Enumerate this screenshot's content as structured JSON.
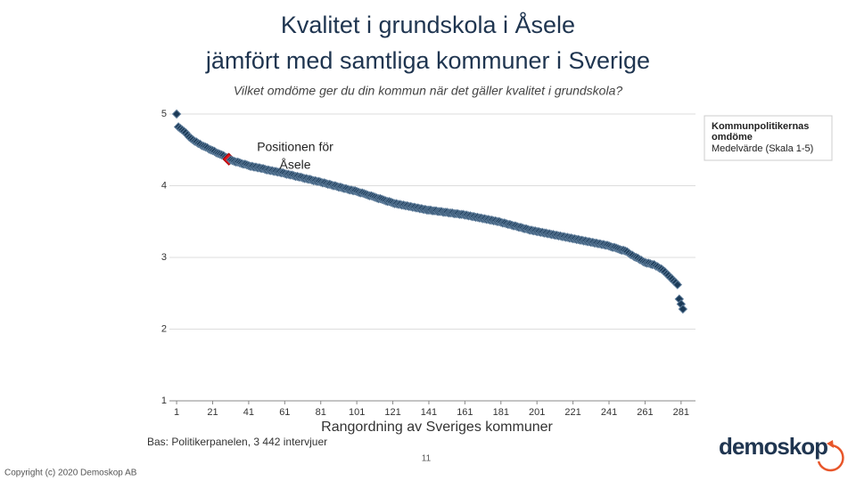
{
  "chart_data": {
    "type": "scatter",
    "title": [
      "Kvalitet i grundskola i Åsele",
      "jämfört med samtliga kommuner i Sverige"
    ],
    "subtitle": "Vilket omdöme ger du din kommun när det gäller kvalitet i grundskola?",
    "x_label": "Rangordning av Sveriges kommuner",
    "series": [
      {
        "name": "Kommunpolitikernas omdöme",
        "color": "#1b3a57",
        "values": [
          5.0,
          4.82,
          4.8,
          4.78,
          4.76,
          4.74,
          4.71,
          4.68,
          4.66,
          4.64,
          4.62,
          4.61,
          4.59,
          4.58,
          4.56,
          4.55,
          4.54,
          4.53,
          4.51,
          4.5,
          4.49,
          4.48,
          4.46,
          4.45,
          4.44,
          4.43,
          4.42,
          4.4,
          4.39,
          4.37,
          4.36,
          4.35,
          4.34,
          4.33,
          4.33,
          4.32,
          4.31,
          4.3,
          4.3,
          4.29,
          4.28,
          4.27,
          4.27,
          4.26,
          4.26,
          4.25,
          4.25,
          4.24,
          4.24,
          4.23,
          4.22,
          4.22,
          4.21,
          4.21,
          4.2,
          4.2,
          4.19,
          4.19,
          4.18,
          4.18,
          4.17,
          4.16,
          4.16,
          4.15,
          4.15,
          4.14,
          4.13,
          4.13,
          4.12,
          4.12,
          4.11,
          4.1,
          4.1,
          4.09,
          4.09,
          4.08,
          4.07,
          4.07,
          4.06,
          4.06,
          4.05,
          4.04,
          4.04,
          4.03,
          4.02,
          4.02,
          4.01,
          4.0,
          4.0,
          3.99,
          3.98,
          3.98,
          3.97,
          3.96,
          3.96,
          3.95,
          3.94,
          3.94,
          3.93,
          3.93,
          3.92,
          3.91,
          3.9,
          3.9,
          3.89,
          3.88,
          3.87,
          3.86,
          3.86,
          3.85,
          3.84,
          3.83,
          3.82,
          3.82,
          3.81,
          3.8,
          3.79,
          3.78,
          3.78,
          3.77,
          3.76,
          3.75,
          3.75,
          3.74,
          3.74,
          3.73,
          3.73,
          3.72,
          3.72,
          3.71,
          3.71,
          3.7,
          3.7,
          3.69,
          3.69,
          3.68,
          3.68,
          3.67,
          3.67,
          3.66,
          3.66,
          3.66,
          3.65,
          3.65,
          3.65,
          3.64,
          3.64,
          3.64,
          3.63,
          3.63,
          3.63,
          3.62,
          3.62,
          3.62,
          3.61,
          3.61,
          3.61,
          3.6,
          3.6,
          3.6,
          3.59,
          3.59,
          3.58,
          3.58,
          3.57,
          3.57,
          3.56,
          3.56,
          3.55,
          3.55,
          3.54,
          3.54,
          3.53,
          3.53,
          3.52,
          3.52,
          3.51,
          3.51,
          3.5,
          3.5,
          3.49,
          3.48,
          3.48,
          3.47,
          3.46,
          3.46,
          3.45,
          3.44,
          3.44,
          3.43,
          3.42,
          3.42,
          3.41,
          3.4,
          3.4,
          3.39,
          3.38,
          3.38,
          3.37,
          3.37,
          3.36,
          3.36,
          3.35,
          3.35,
          3.34,
          3.34,
          3.33,
          3.33,
          3.32,
          3.32,
          3.31,
          3.31,
          3.3,
          3.3,
          3.29,
          3.29,
          3.28,
          3.28,
          3.27,
          3.27,
          3.26,
          3.26,
          3.25,
          3.25,
          3.24,
          3.24,
          3.23,
          3.23,
          3.22,
          3.22,
          3.21,
          3.21,
          3.2,
          3.2,
          3.19,
          3.19,
          3.18,
          3.18,
          3.17,
          3.17,
          3.16,
          3.15,
          3.14,
          3.14,
          3.13,
          3.12,
          3.11,
          3.1,
          3.1,
          3.09,
          3.08,
          3.06,
          3.04,
          3.03,
          3.01,
          3.0,
          2.99,
          2.97,
          2.96,
          2.94,
          2.93,
          2.92,
          2.92,
          2.91,
          2.9,
          2.9,
          2.88,
          2.87,
          2.85,
          2.84,
          2.82,
          2.8,
          2.77,
          2.75,
          2.72,
          2.7,
          2.67,
          2.65,
          2.62,
          2.42,
          2.35,
          2.28
        ]
      }
    ],
    "legend_note": "Medelvärde (Skala 1-5)",
    "highlight": {
      "x": 30,
      "color": "#e3141b",
      "annotation": [
        "Positionen för",
        "Åsele"
      ]
    },
    "xlim": [
      -3,
      289
    ],
    "xticks": [
      1,
      21,
      41,
      61,
      81,
      101,
      121,
      141,
      161,
      181,
      201,
      221,
      241,
      261,
      281
    ],
    "ylim": [
      1,
      5
    ],
    "yticks": [
      1,
      2,
      3,
      4,
      5
    ],
    "grid": true,
    "legend": "right"
  },
  "footnote": "Bas: Politikerpanelen, 3 442 intervjuer",
  "page_number": "11",
  "copyright": "Copyright (c) 2020 Demoskop AB",
  "logo": "demoskop"
}
